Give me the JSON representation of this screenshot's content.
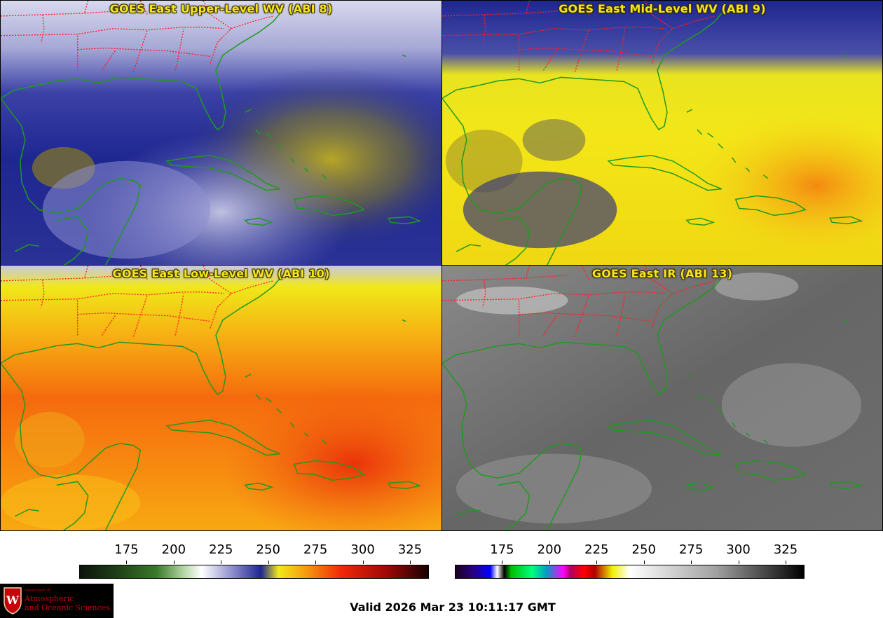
{
  "panels": [
    {
      "title": "GOES East Upper-Level WV (ABI 8)"
    },
    {
      "title": "GOES East Mid-Level WV (ABI 9)"
    },
    {
      "title": "GOES East Low-Level WV (ABI 10)"
    },
    {
      "title": "GOES East IR (ABI 13)"
    }
  ],
  "colorbars": [
    {
      "name": "water-vapor",
      "ticks": [
        "175",
        "200",
        "225",
        "250",
        "275",
        "300",
        "325"
      ]
    },
    {
      "name": "infrared",
      "ticks": [
        "175",
        "200",
        "225",
        "250",
        "275",
        "300",
        "325"
      ]
    }
  ],
  "logo": {
    "department": "Department of",
    "line1": "Atmospheric",
    "line2": "and Oceanic Sciences"
  },
  "valid_time": "Valid 2026 Mar 23 10:11:17 GMT",
  "colors": {
    "title_yellow": "#f5e61c",
    "state_borders": "#ff2020",
    "coastlines": "#1f9a1f",
    "logo_red": "#c5050c"
  }
}
